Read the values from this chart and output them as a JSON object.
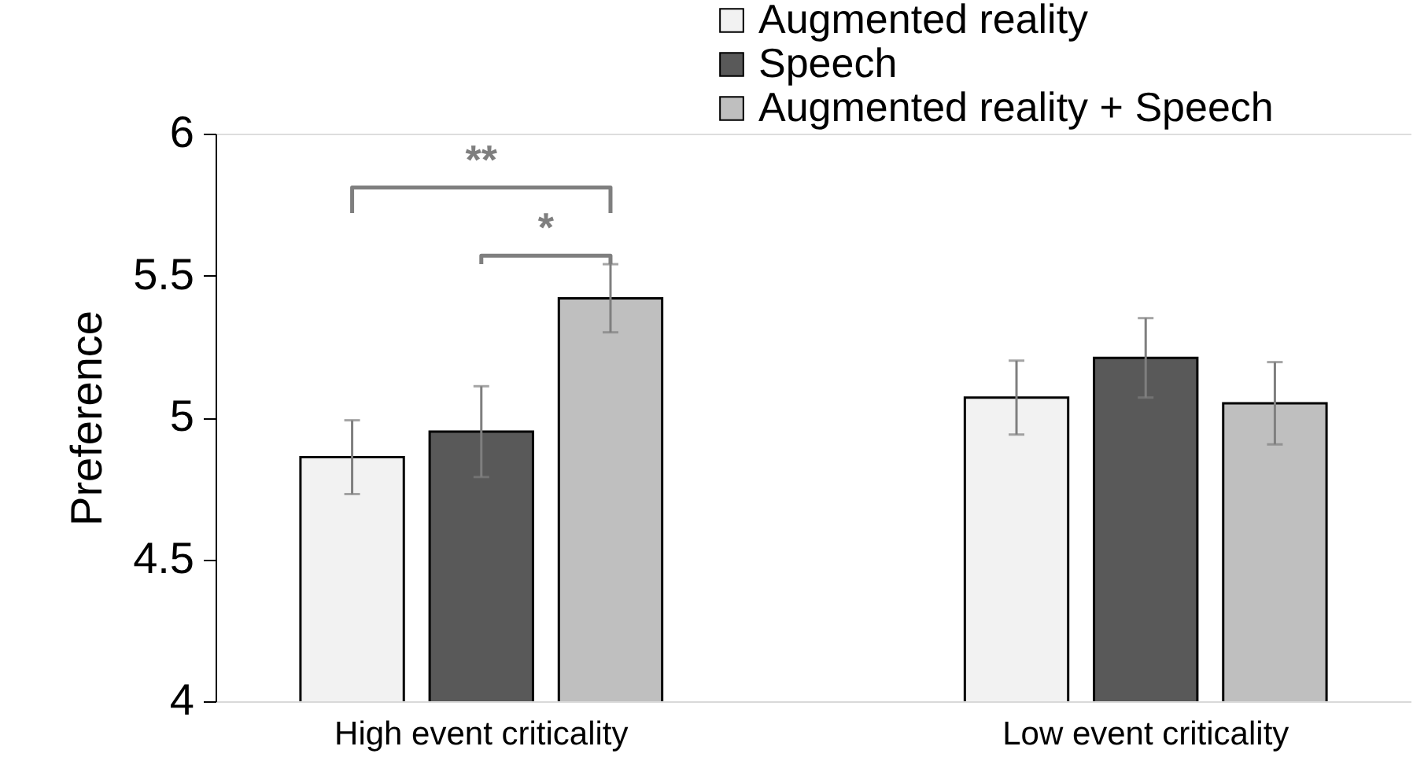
{
  "chart_data": {
    "type": "bar",
    "ylabel": "Preference",
    "categories": [
      "High event criticality",
      "Low event criticality"
    ],
    "series": [
      {
        "name": "Augmented reality",
        "color": "#f2f2f2",
        "values": [
          4.86,
          5.07
        ],
        "errors": [
          0.13,
          0.13
        ]
      },
      {
        "name": "Speech",
        "color": "#595959",
        "values": [
          4.95,
          5.21
        ],
        "errors": [
          0.16,
          0.14
        ]
      },
      {
        "name": "Augmented reality + Speech",
        "color": "#bfbfbf",
        "values": [
          5.42,
          5.05
        ],
        "errors": [
          0.12,
          0.145
        ]
      }
    ],
    "ylim": [
      4,
      6
    ],
    "yticks": [
      4,
      4.5,
      5,
      5.5,
      6
    ],
    "grid": false,
    "legend": "top right",
    "annotations": [
      "**",
      "*"
    ]
  }
}
